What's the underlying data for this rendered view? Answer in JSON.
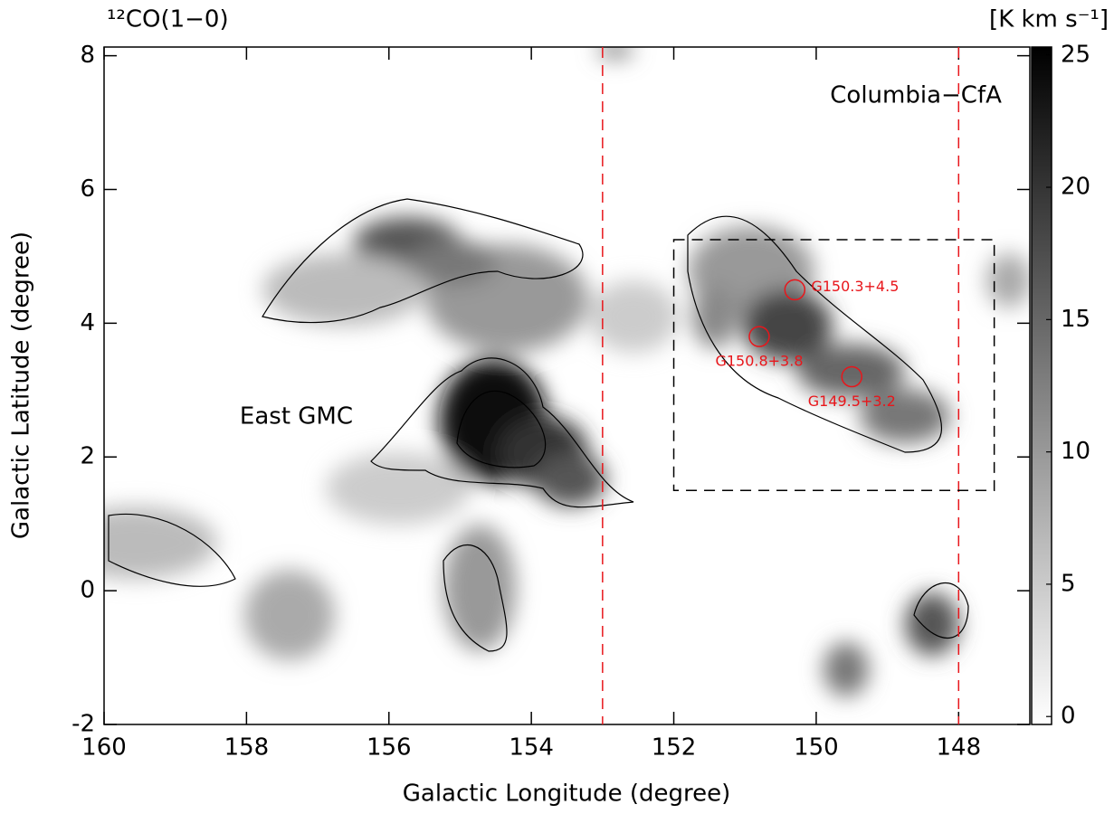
{
  "chart_data": {
    "type": "heatmap",
    "title": "¹²CO(1−0)",
    "colorbar_label": "[K km s⁻¹]",
    "x_label": "Galactic Longitude (degree)",
    "y_label": "Galactic Latitude (degree)",
    "xlim": [
      160,
      147
    ],
    "xticks": [
      160,
      158,
      156,
      154,
      152,
      150,
      148
    ],
    "ylim": [
      -2,
      8.13
    ],
    "yticks": [
      -2,
      0,
      2,
      4,
      6,
      8
    ],
    "clim": [
      -0.3,
      25.3
    ],
    "cticks": [
      0,
      5,
      10,
      15,
      20,
      25
    ],
    "vlines": [
      {
        "x": 153,
        "color": "#e8161b"
      },
      {
        "x": 148,
        "color": "#e8161b"
      }
    ],
    "box": {
      "x": [
        152,
        147.5
      ],
      "y": [
        1.5,
        5.25
      ]
    },
    "sources": [
      {
        "label": "G150.3+4.5",
        "x": 150.3,
        "y": 4.5
      },
      {
        "label": "G150.8+3.8",
        "x": 150.8,
        "y": 3.8
      },
      {
        "label": "G149.5+3.2",
        "x": 149.5,
        "y": 3.2
      }
    ],
    "annotations": [
      {
        "text": "East GMC",
        "x": 157.3,
        "y": 2.6
      },
      {
        "text": "Columbia−CfA",
        "x": 148.6,
        "y": 7.4
      }
    ]
  }
}
